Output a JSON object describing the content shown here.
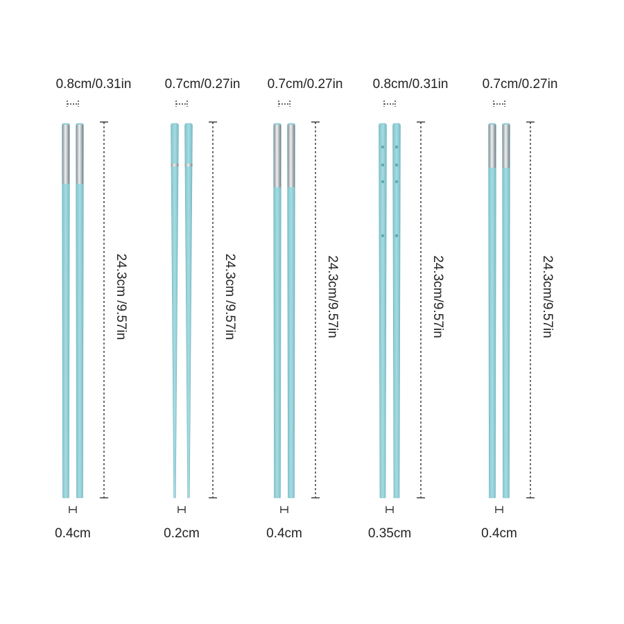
{
  "pairs": [
    {
      "top_width": "0.8cm/0.31in",
      "length": "24.3cm /9.57in",
      "tip_width": "0.4cm"
    },
    {
      "top_width": "0.7cm/0.27in",
      "length": "24.3cm /9.57in",
      "tip_width": "0.2cm"
    },
    {
      "top_width": "0.7cm/0.27in",
      "length": "24.3cm/9.57in",
      "tip_width": "0.4cm"
    },
    {
      "top_width": "0.8cm/0.31in",
      "length": "24.3cm/9.57in",
      "tip_width": "0.35cm"
    },
    {
      "top_width": "0.7cm/0.27in",
      "length": "24.3cm/9.57in",
      "tip_width": "0.4cm"
    }
  ]
}
